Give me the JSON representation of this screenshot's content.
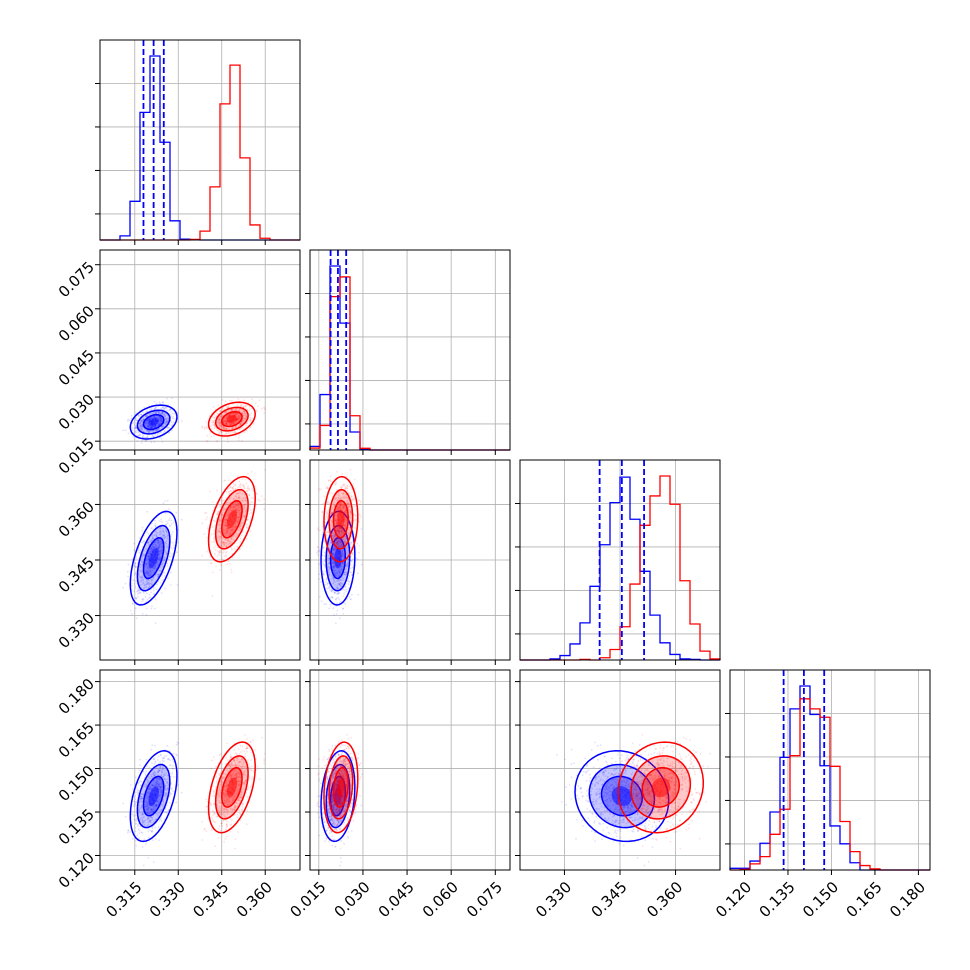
{
  "colors": {
    "blue": "#0000ff",
    "red": "#ff0000",
    "grid": "#b0b0b0",
    "axis": "#000000"
  },
  "chart_data": {
    "type": "corner",
    "grid": true,
    "parameters": [
      {
        "range": [
          0.303,
          0.372
        ],
        "ticks": [
          0.315,
          0.33,
          0.345,
          0.36
        ],
        "tick_labels": [
          "0.315",
          "0.330",
          "0.345",
          "0.360"
        ]
      },
      {
        "range": [
          0.012,
          0.08
        ],
        "ticks": [
          0.015,
          0.03,
          0.045,
          0.06,
          0.075
        ],
        "tick_labels": [
          "0.015",
          "0.030",
          "0.045",
          "0.060",
          "0.075"
        ]
      },
      {
        "range": [
          0.318,
          0.372
        ],
        "ticks": [
          0.33,
          0.345,
          0.36
        ],
        "tick_labels": [
          "0.330",
          "0.345",
          "0.360"
        ]
      },
      {
        "range": [
          0.115,
          0.184
        ],
        "ticks": [
          0.12,
          0.135,
          0.15,
          0.165,
          0.18
        ],
        "tick_labels": [
          "0.120",
          "0.135",
          "0.150",
          "0.165",
          "0.180"
        ]
      }
    ],
    "series": [
      {
        "color": "#0000ff",
        "means": [
          0.3215,
          0.0215,
          0.3455,
          0.1405
        ],
        "sds": [
          0.0035,
          0.0025,
          0.0055,
          0.0068
        ],
        "correlations": [
          [
            0,
            1,
            0.3
          ],
          [
            0,
            2,
            0.55
          ],
          [
            0,
            3,
            0.45
          ],
          [
            1,
            2,
            0.05
          ],
          [
            1,
            3,
            0.2
          ],
          [
            2,
            3,
            -0.1
          ]
        ],
        "quantiles": [
          [
            0.318,
            0.3215,
            0.325
          ],
          [
            0.019,
            0.0215,
            0.0243
          ],
          [
            0.3395,
            0.3455,
            0.3515
          ],
          [
            0.1335,
            0.1405,
            0.1475
          ]
        ]
      },
      {
        "color": "#ff0000",
        "means": [
          0.3485,
          0.0225,
          0.356,
          0.1435
        ],
        "sds": [
          0.0035,
          0.0025,
          0.005,
          0.0068
        ],
        "correlations": [
          [
            0,
            1,
            0.3
          ],
          [
            0,
            2,
            0.5
          ],
          [
            0,
            3,
            0.45
          ],
          [
            1,
            2,
            0.05
          ],
          [
            1,
            3,
            0.2
          ],
          [
            2,
            3,
            0.1
          ]
        ],
        "quantiles": []
      }
    ]
  }
}
